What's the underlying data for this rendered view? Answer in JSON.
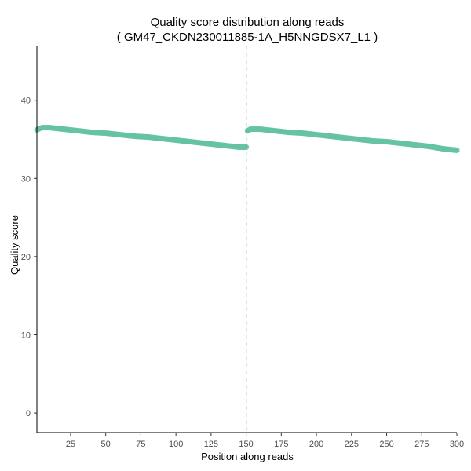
{
  "chart_data": {
    "type": "scatter",
    "title": "Quality score distribution along reads",
    "subtitle": "( GM47_CKDN230011885-1A_H5NNGDSX7_L1 )",
    "xlabel": "Position along reads",
    "ylabel": "Quality score",
    "xlim": [
      1,
      300
    ],
    "ylim": [
      -2.5,
      47
    ],
    "x_ticks": [
      25,
      50,
      75,
      100,
      125,
      150,
      175,
      200,
      225,
      250,
      275,
      300
    ],
    "y_ticks": [
      0,
      10,
      20,
      30,
      40
    ],
    "grid": false,
    "legend": "none",
    "point_color": "#66c2a5",
    "read_boundary": {
      "x": 150,
      "color": "#3b88c4",
      "style": "dashed"
    },
    "series": [
      {
        "x": [
          1,
          3,
          5,
          10,
          15,
          20,
          25,
          30,
          40,
          50,
          60,
          70,
          80,
          90,
          100,
          110,
          120,
          130,
          140,
          145,
          150,
          151,
          153,
          155,
          160,
          165,
          170,
          175,
          180,
          190,
          200,
          210,
          220,
          230,
          240,
          250,
          260,
          270,
          280,
          290,
          295,
          300
        ],
        "y": [
          36.2,
          36.4,
          36.5,
          36.5,
          36.4,
          36.3,
          36.2,
          36.1,
          35.9,
          35.8,
          35.6,
          35.4,
          35.3,
          35.1,
          34.9,
          34.7,
          34.5,
          34.3,
          34.1,
          34.0,
          34.0,
          36.1,
          36.3,
          36.3,
          36.3,
          36.2,
          36.1,
          36.0,
          35.9,
          35.8,
          35.6,
          35.4,
          35.2,
          35.0,
          34.8,
          34.7,
          34.5,
          34.3,
          34.1,
          33.8,
          33.7,
          33.6
        ]
      }
    ]
  }
}
